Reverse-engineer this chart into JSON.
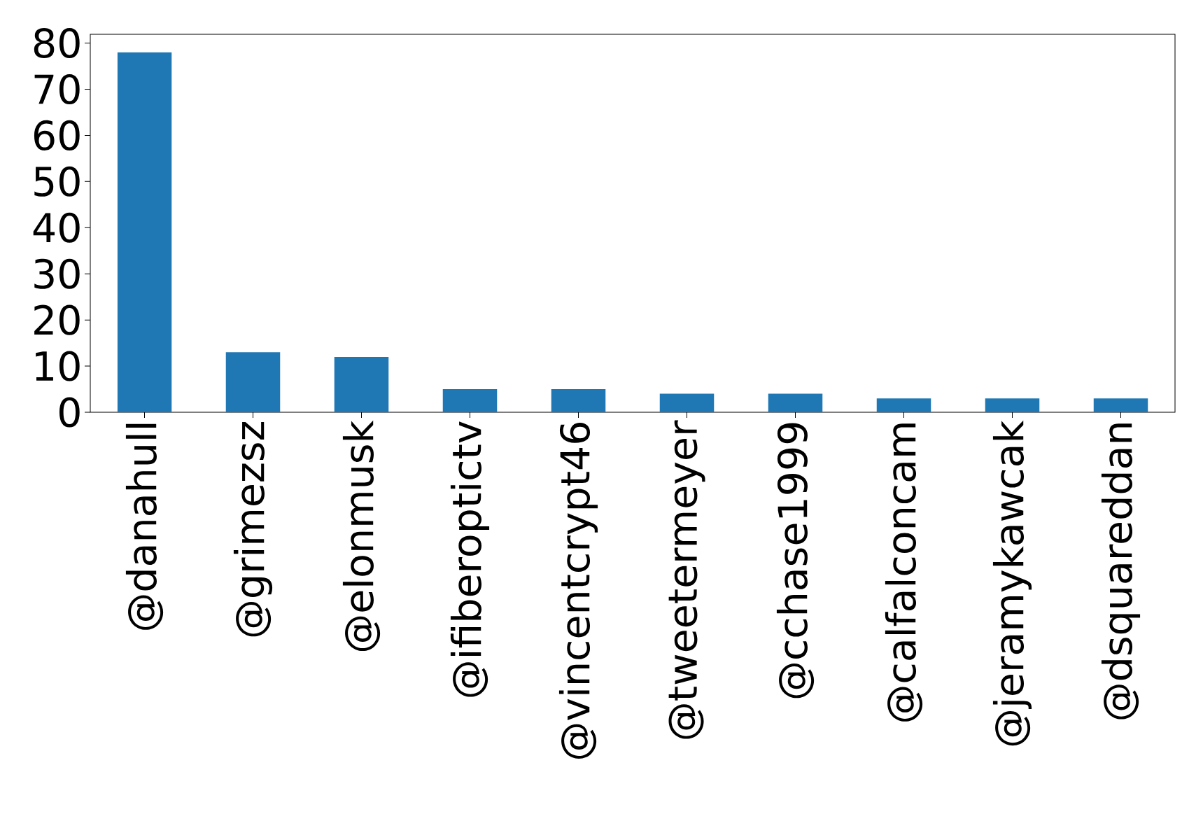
{
  "chart_data": {
    "type": "bar",
    "categories": [
      "@danahull",
      "@grimezsz",
      "@elonmusk",
      "@ifiberoptictv",
      "@vincentcrypt46",
      "@tweetermeyer",
      "@cchase1999",
      "@calfalconcam",
      "@jeramykawcak",
      "@dsquareddan"
    ],
    "values": [
      78,
      13,
      12,
      5,
      5,
      4,
      4,
      3,
      3,
      3
    ],
    "color": "#1f77b4",
    "ylim": [
      0,
      81.9
    ],
    "yticks": [
      0,
      10,
      20,
      30,
      40,
      50,
      60,
      70,
      80
    ],
    "grid": false
  }
}
